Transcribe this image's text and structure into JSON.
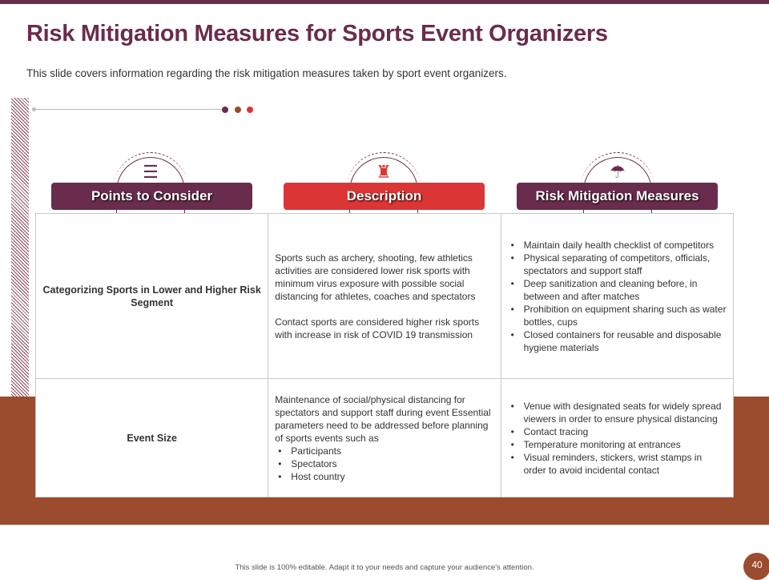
{
  "title": "Risk Mitigation Measures for Sports Event Organizers",
  "subtitle": "This slide covers information regarding the risk mitigation measures taken by sport event organizers.",
  "colors": {
    "maroon": "#6a2c4c",
    "red": "#dc3535",
    "brown": "#9b4c2e"
  },
  "headers": [
    {
      "label": "Points to Consider",
      "icon": "list-icon"
    },
    {
      "label": "Description",
      "icon": "person-document-icon"
    },
    {
      "label": "Risk Mitigation Measures",
      "icon": "umbrella-gear-icon"
    }
  ],
  "rows": [
    {
      "point": "Categorizing Sports in Lower and Higher Risk Segment",
      "description": [
        "Sports such as archery, shooting, few athletics activities  are considered lower risk sports with minimum virus exposure with possible social distancing for athletes, coaches and spectators",
        "Contact sports are considered higher risk sports with increase in risk of COVID 19 transmission"
      ],
      "measures": [
        "Maintain daily health checklist of competitors",
        "Physical separating of competitors, officials, spectators and support staff",
        "Deep sanitization and cleaning before, in between and after matches",
        "Prohibition on equipment sharing such as water bottles, cups",
        "Closed containers for reusable and disposable hygiene materials"
      ]
    },
    {
      "point": "Event Size",
      "description": [
        "Maintenance of social/physical distancing for spectators and support staff during event Essential parameters  need to be addressed before planning of sports events  such as"
      ],
      "description_list": [
        "Participants",
        "Spectators",
        "Host country"
      ],
      "measures": [
        "Venue with designated seats for widely spread viewers  in order to ensure physical distancing",
        "Contact tracing",
        "Temperature  monitoring at entrances",
        "Visual reminders, stickers, wrist stamps in order to avoid  incidental contact"
      ]
    }
  ],
  "footer": "This slide is 100% editable.  Adapt it to your needs and capture your audience's attention.",
  "page_number": "40"
}
